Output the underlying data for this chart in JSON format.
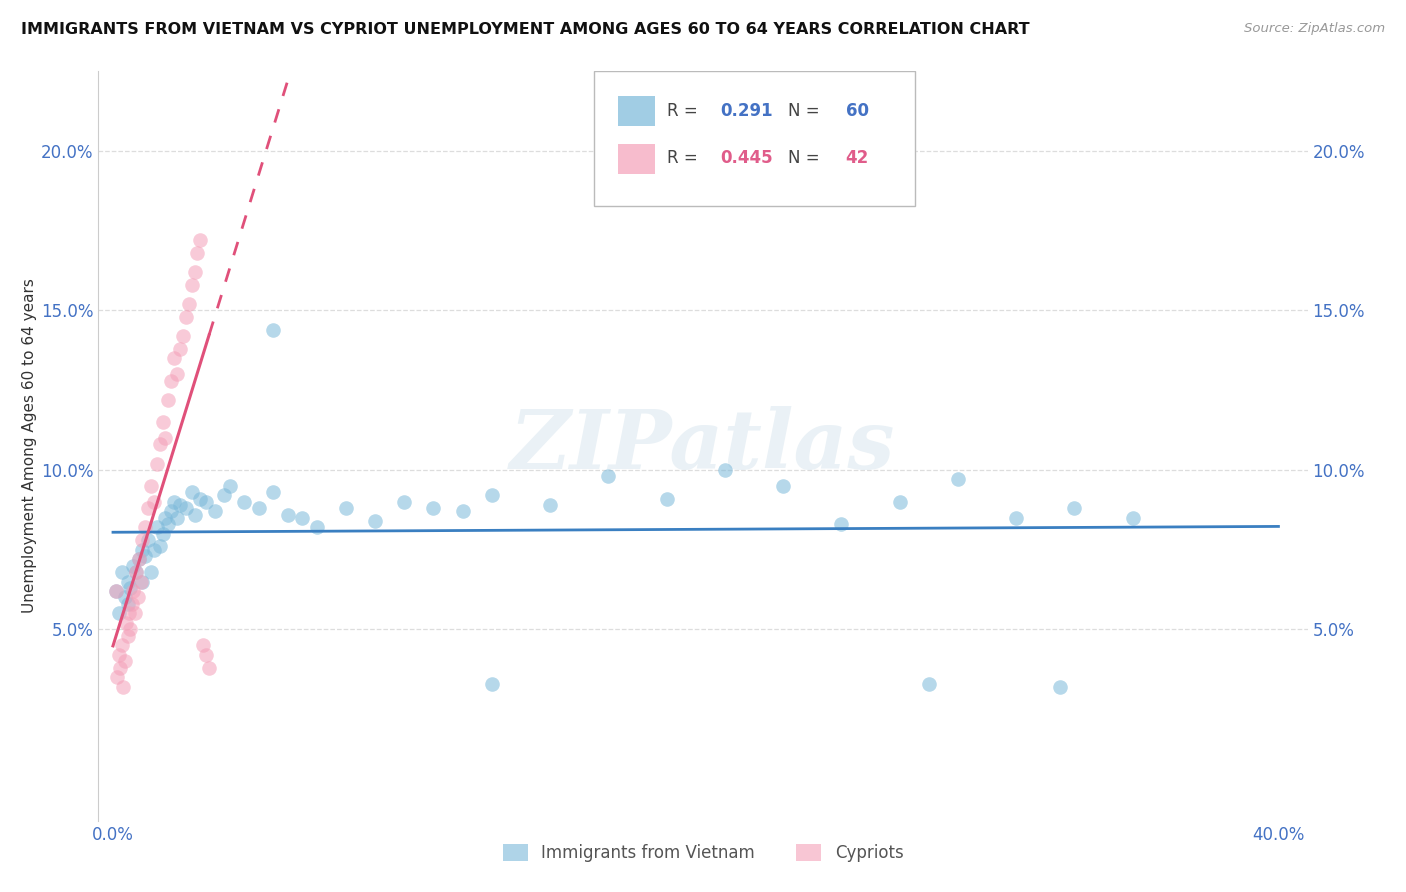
{
  "title": "IMMIGRANTS FROM VIETNAM VS CYPRIOT UNEMPLOYMENT AMONG AGES 60 TO 64 YEARS CORRELATION CHART",
  "source": "Source: ZipAtlas.com",
  "ylabel": "Unemployment Among Ages 60 to 64 years",
  "xlim": [
    -0.5,
    41
  ],
  "ylim": [
    -1.0,
    22.5
  ],
  "yticks": [
    5,
    10,
    15,
    20
  ],
  "ytick_labels": [
    "5.0%",
    "10.0%",
    "15.0%",
    "20.0%"
  ],
  "xtick_labels": [
    "0.0%",
    "40.0%"
  ],
  "blue_R": 0.291,
  "blue_N": 60,
  "pink_R": 0.445,
  "pink_N": 42,
  "blue_color": "#7ab8d9",
  "pink_color": "#f4a0b8",
  "blue_line_color": "#3a7fc1",
  "pink_line_color": "#e0507a",
  "watermark": "ZIPatlas",
  "blue_scatter_x": [
    0.1,
    0.2,
    0.3,
    0.4,
    0.5,
    0.5,
    0.6,
    0.7,
    0.8,
    0.9,
    1.0,
    1.0,
    1.1,
    1.2,
    1.3,
    1.4,
    1.5,
    1.6,
    1.7,
    1.8,
    1.9,
    2.0,
    2.1,
    2.2,
    2.3,
    2.5,
    2.7,
    2.8,
    3.0,
    3.2,
    3.5,
    3.8,
    4.0,
    4.5,
    5.0,
    5.5,
    6.0,
    6.5,
    7.0,
    8.0,
    9.0,
    10.0,
    11.0,
    12.0,
    13.0,
    15.0,
    17.0,
    19.0,
    21.0,
    23.0,
    25.0,
    27.0,
    29.0,
    31.0,
    33.0,
    35.0,
    5.5,
    13.0,
    28.0,
    32.5
  ],
  "blue_scatter_y": [
    6.2,
    5.5,
    6.8,
    6.0,
    6.5,
    5.8,
    6.3,
    7.0,
    6.8,
    7.2,
    6.5,
    7.5,
    7.3,
    7.8,
    6.8,
    7.5,
    8.2,
    7.6,
    8.0,
    8.5,
    8.3,
    8.7,
    9.0,
    8.5,
    8.9,
    8.8,
    9.3,
    8.6,
    9.1,
    9.0,
    8.7,
    9.2,
    9.5,
    9.0,
    8.8,
    9.3,
    8.6,
    8.5,
    8.2,
    8.8,
    8.4,
    9.0,
    8.8,
    8.7,
    9.2,
    8.9,
    9.8,
    9.1,
    10.0,
    9.5,
    8.3,
    9.0,
    9.7,
    8.5,
    8.8,
    8.5,
    14.4,
    3.3,
    3.3,
    3.2
  ],
  "pink_scatter_x": [
    0.1,
    0.15,
    0.2,
    0.25,
    0.3,
    0.35,
    0.4,
    0.45,
    0.5,
    0.55,
    0.6,
    0.65,
    0.7,
    0.75,
    0.8,
    0.85,
    0.9,
    0.95,
    1.0,
    1.1,
    1.2,
    1.3,
    1.4,
    1.5,
    1.6,
    1.7,
    1.8,
    1.9,
    2.0,
    2.1,
    2.2,
    2.3,
    2.4,
    2.5,
    2.6,
    2.7,
    2.8,
    2.9,
    3.0,
    3.1,
    3.2,
    3.3
  ],
  "pink_scatter_y": [
    6.2,
    3.5,
    4.2,
    3.8,
    4.5,
    3.2,
    4.0,
    5.2,
    4.8,
    5.5,
    5.0,
    5.8,
    6.2,
    5.5,
    6.8,
    6.0,
    7.2,
    6.5,
    7.8,
    8.2,
    8.8,
    9.5,
    9.0,
    10.2,
    10.8,
    11.5,
    11.0,
    12.2,
    12.8,
    13.5,
    13.0,
    13.8,
    14.2,
    14.8,
    15.2,
    15.8,
    16.2,
    16.8,
    17.2,
    4.5,
    4.2,
    3.8
  ]
}
